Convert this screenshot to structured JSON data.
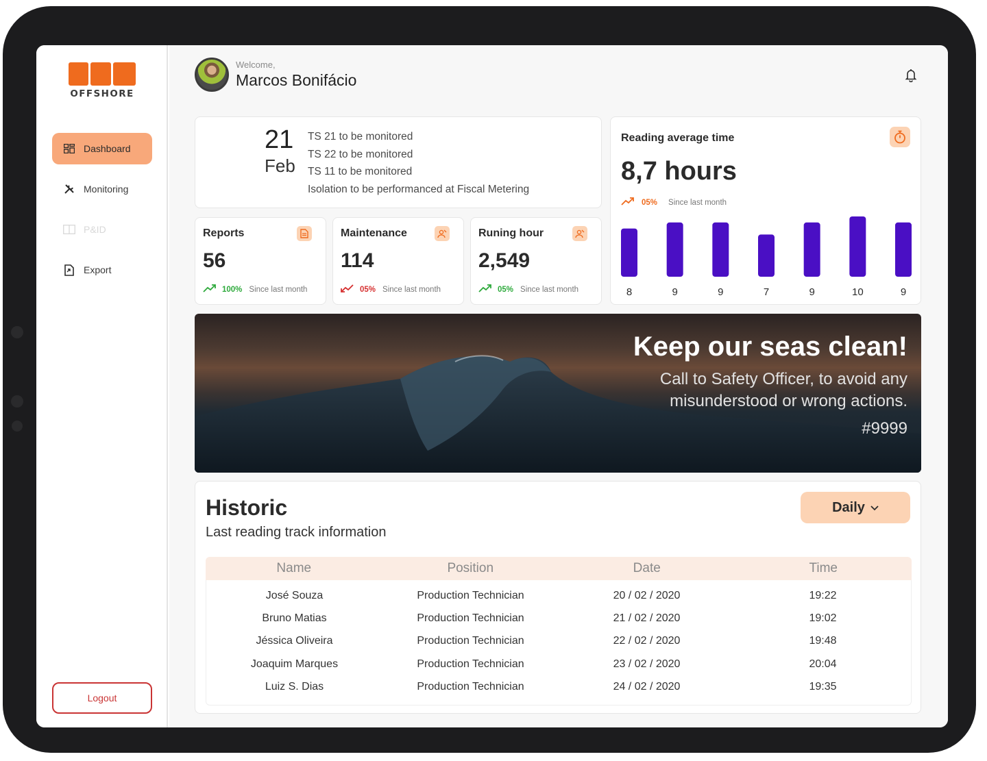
{
  "brand": {
    "logo_text": "OFFSHORE",
    "logo_mark": "SBM",
    "accent": "#ef6b1e"
  },
  "sidebar": {
    "items": [
      {
        "label": "Dashboard",
        "icon": "dashboard-icon",
        "active": true
      },
      {
        "label": "Monitoring",
        "icon": "tools-icon"
      },
      {
        "label": "P&ID",
        "icon": "book-icon",
        "disabled": true
      },
      {
        "label": "Export",
        "icon": "export-icon"
      }
    ],
    "logout_label": "Logout"
  },
  "header": {
    "welcome": "Welcome,",
    "name": "Marcos Bonifácio"
  },
  "date_card": {
    "day": "21",
    "month": "Feb",
    "tasks": [
      "TS 21 to be monitored",
      "TS 22 to be monitored",
      "TS 11 to be monitored",
      "Isolation to be performanced at Fiscal Metering"
    ]
  },
  "stats": [
    {
      "title": "Reports",
      "value": "56",
      "pct": "100%",
      "trend": "up",
      "since": "Since last month",
      "icon": "document-icon"
    },
    {
      "title": "Maintenance",
      "value": "114",
      "pct": "05%",
      "trend": "down",
      "since": "Since last month",
      "icon": "worker-icon"
    },
    {
      "title": "Runing hour",
      "value": "2,549",
      "pct": "05%",
      "trend": "up",
      "since": "Since last month",
      "icon": "worker-icon"
    }
  ],
  "reading": {
    "title": "Reading average time",
    "value": "8,7 hours",
    "pct": "05%",
    "since": "Since last month",
    "icon": "stopwatch-icon",
    "bar_color": "#4a0fc4"
  },
  "chart_data": {
    "type": "bar",
    "values": [
      8,
      9,
      9,
      7,
      9,
      10,
      9
    ],
    "ylim": [
      0,
      10
    ]
  },
  "banner": {
    "title": "Keep our seas clean!",
    "subtitle": "Call to Safety Officer, to avoid any misunderstood or wrong actions.",
    "tag": "#9999"
  },
  "historic": {
    "title": "Historic",
    "subtitle": "Last reading  track information",
    "filter": "Daily",
    "columns": [
      "Name",
      "Position",
      "Date",
      "Time"
    ],
    "rows": [
      [
        "José Souza",
        "Production Technician",
        "20 / 02 / 2020",
        "19:22"
      ],
      [
        "Bruno Matias",
        "Production Technician",
        "21 / 02 / 2020",
        "19:02"
      ],
      [
        "Jéssica Oliveira",
        "Production Technician",
        "22 / 02 / 2020",
        "19:48"
      ],
      [
        "Joaquim Marques",
        "Production Technician",
        "23 / 02 / 2020",
        "20:04"
      ],
      [
        "Luiz S. Dias",
        "Production Technician",
        "24 / 02 / 2020",
        "19:35"
      ]
    ]
  }
}
